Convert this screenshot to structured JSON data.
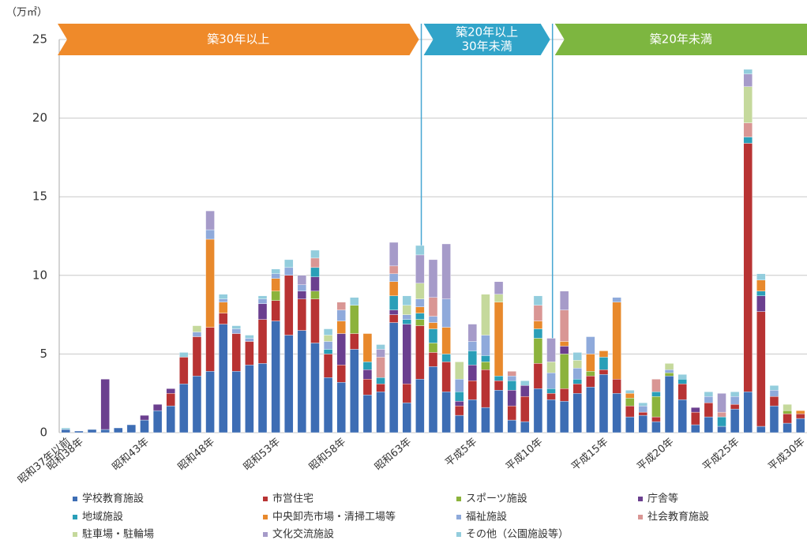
{
  "chart_data": {
    "type": "stacked_bar",
    "y_unit": "（万㎡）",
    "ylim": [
      0,
      25
    ],
    "yticks": [
      0,
      5,
      10,
      15,
      20,
      25
    ],
    "grid": true,
    "periods": [
      {
        "lines": [
          "築30年以上"
        ],
        "color": "#ef8a2a"
      },
      {
        "lines": [
          "築20年以上",
          "30年未満"
        ],
        "color": "#31a4c9"
      },
      {
        "lines": [
          "築20年未満"
        ],
        "color": "#7db640"
      }
    ],
    "divider_color": "#45a6d2",
    "categories": [
      "昭和37年以前",
      "昭和38年",
      null,
      null,
      null,
      null,
      "昭和43年",
      null,
      null,
      null,
      null,
      "昭和48年",
      null,
      null,
      null,
      null,
      "昭和53年",
      null,
      null,
      null,
      null,
      "昭和58年",
      null,
      null,
      null,
      null,
      "昭和63年",
      null,
      null,
      null,
      null,
      "平成5年",
      null,
      null,
      null,
      null,
      "平成10年",
      null,
      null,
      null,
      null,
      "平成15年",
      null,
      null,
      null,
      null,
      "平成20年",
      null,
      null,
      null,
      null,
      "平成25年",
      null,
      null,
      null,
      null,
      "平成30年"
    ],
    "series": [
      {
        "name": "学校教育施設",
        "color": "#3d6db4",
        "values": [
          0.2,
          0.1,
          0.2,
          0.2,
          0.3,
          0.5,
          0.8,
          1.4,
          1.7,
          3.1,
          3.6,
          3.9,
          6.9,
          3.9,
          4.3,
          4.4,
          7.1,
          6.2,
          6.5,
          5.7,
          3.5,
          3.2,
          5.3,
          2.4,
          2.6,
          7.0,
          1.9,
          3.4,
          4.2,
          2.6,
          1.1,
          2.1,
          1.6,
          2.7,
          0.8,
          0.7,
          2.8,
          2.1,
          2.0,
          2.5,
          2.9,
          3.7,
          2.5,
          1.0,
          1.1,
          0.7,
          3.6,
          2.1,
          0.5,
          1.0,
          0.4,
          1.5,
          2.6,
          0.4,
          1.7,
          0.6,
          0.9
        ]
      },
      {
        "name": "市営住宅",
        "color": "#b83333",
        "values": [
          0,
          0,
          0,
          0,
          0,
          0,
          0,
          0,
          0.8,
          1.7,
          2.5,
          2.8,
          0.7,
          2.4,
          1.5,
          2.8,
          1.3,
          3.8,
          2.0,
          2.8,
          1.5,
          1.1,
          1.0,
          1.0,
          0.5,
          0.5,
          1.2,
          3.4,
          0.9,
          1.9,
          0.6,
          1.2,
          2.4,
          0.6,
          0.9,
          1.6,
          1.6,
          0.4,
          0.8,
          0.6,
          0.7,
          0.3,
          0.9,
          0.7,
          0.2,
          0.3,
          0,
          1.0,
          0.8,
          0.9,
          0,
          0.3,
          15.8,
          7.3,
          0.6,
          0.6,
          0.3
        ]
      },
      {
        "name": "スポーツ施設",
        "color": "#8cb33c",
        "values": [
          0,
          0,
          0,
          0,
          0,
          0,
          0,
          0,
          0,
          0,
          0,
          0,
          0,
          0,
          0,
          0,
          0.6,
          0,
          0,
          0.5,
          0,
          0,
          1.8,
          0,
          0,
          0,
          0,
          0.4,
          0.6,
          0,
          0,
          0,
          0.5,
          0,
          0,
          0,
          1.6,
          0,
          2.2,
          0,
          0.3,
          0,
          0,
          0.5,
          0,
          1.3,
          0.2,
          0,
          0,
          0,
          0,
          0,
          0,
          0,
          0,
          0.2,
          0
        ]
      },
      {
        "name": "庁舎等",
        "color": "#6b3f8f",
        "values": [
          0,
          0,
          0,
          3.2,
          0,
          0,
          0.3,
          0.4,
          0.3,
          0,
          0,
          0,
          0,
          0,
          0,
          1.0,
          0,
          0,
          0.5,
          0.9,
          0,
          2.0,
          0,
          0.6,
          0,
          0.3,
          3.8,
          0,
          0,
          0,
          0.3,
          1.0,
          0,
          0,
          1.0,
          0.7,
          0,
          0,
          0.5,
          0,
          0,
          0,
          0,
          0,
          0,
          0,
          0,
          0,
          0.3,
          0,
          0,
          0,
          0,
          1.0,
          0,
          0,
          0
        ]
      },
      {
        "name": "地域施設",
        "color": "#2a9fb8",
        "values": [
          0,
          0,
          0,
          0,
          0,
          0,
          0,
          0,
          0,
          0,
          0,
          0,
          0,
          0,
          0,
          0,
          0,
          0,
          0,
          0.6,
          0.3,
          0,
          0,
          0.5,
          0.4,
          0.9,
          0.3,
          0.4,
          0.9,
          0.5,
          0.6,
          0.9,
          0.4,
          0.3,
          0.6,
          0,
          0.6,
          0.3,
          0,
          0.3,
          0,
          0.8,
          0,
          0,
          0,
          0.3,
          0,
          0.3,
          0,
          0,
          0.6,
          0,
          0.4,
          0.3,
          0,
          0,
          0
        ]
      },
      {
        "name": "中央卸売市場・清掃工場等",
        "color": "#e8892c",
        "values": [
          0,
          0,
          0,
          0,
          0,
          0,
          0,
          0,
          0,
          0,
          0,
          5.6,
          0.7,
          0,
          0,
          0,
          0.8,
          0,
          0,
          0,
          0,
          0.8,
          0,
          1.8,
          0,
          0.9,
          0,
          0.4,
          0.4,
          1.7,
          0,
          0,
          0,
          4.7,
          0,
          0,
          0.5,
          0,
          0.3,
          0,
          1.1,
          0.4,
          4.9,
          0.3,
          0,
          0,
          0,
          0,
          0,
          0,
          0,
          0,
          0,
          0.7,
          0,
          0,
          0.2
        ]
      },
      {
        "name": "福祉施設",
        "color": "#8faadb",
        "values": [
          0,
          0,
          0,
          0,
          0,
          0,
          0,
          0,
          0,
          0,
          0.3,
          0.6,
          0.2,
          0.3,
          0.2,
          0.3,
          0.3,
          0.5,
          0.4,
          0,
          0.5,
          0.7,
          0,
          0,
          0,
          0.5,
          0.3,
          0.5,
          0.4,
          1.8,
          0.8,
          0.6,
          1.3,
          0,
          0.3,
          0,
          0,
          1.0,
          0,
          0.7,
          1.1,
          0,
          0.3,
          0,
          0.4,
          0,
          0.2,
          0,
          0,
          0.4,
          0,
          0.5,
          0,
          0,
          0.4,
          0,
          0
        ]
      },
      {
        "name": "社会教育施設",
        "color": "#d99694",
        "values": [
          0,
          0,
          0,
          0,
          0,
          0,
          0,
          0,
          0,
          0,
          0,
          0,
          0,
          0,
          0,
          0,
          0,
          0,
          0,
          0.6,
          0,
          0.5,
          0,
          0,
          1.3,
          0.5,
          0,
          0,
          1.2,
          0,
          0,
          0,
          0,
          0,
          0.3,
          0,
          1.0,
          0,
          2.0,
          0,
          0,
          0,
          0,
          0,
          0,
          0.8,
          0,
          0,
          0,
          0,
          0.3,
          0,
          0.9,
          0,
          0,
          0,
          0
        ]
      },
      {
        "name": "駐車場・駐輪場",
        "color": "#c5d99c",
        "values": [
          0,
          0,
          0,
          0,
          0,
          0,
          0,
          0,
          0,
          0,
          0.4,
          0,
          0,
          0,
          0,
          0,
          0,
          0,
          0,
          0,
          0.4,
          0,
          0,
          0,
          0,
          0,
          0.6,
          1.0,
          0,
          0,
          1.1,
          0,
          2.6,
          0.5,
          0,
          0,
          0,
          0.7,
          0,
          0.5,
          0,
          0,
          0,
          0,
          0,
          0,
          0.4,
          0,
          0,
          0,
          0,
          0,
          2.3,
          0,
          0,
          0.4,
          0
        ]
      },
      {
        "name": "文化交流施設",
        "color": "#a69bc9",
        "values": [
          0,
          0,
          0,
          0,
          0,
          0,
          0,
          0,
          0,
          0,
          0,
          1.2,
          0,
          0,
          0,
          0,
          0,
          0,
          0.6,
          0,
          0,
          0,
          0,
          0,
          0.5,
          1.5,
          0,
          1.8,
          2.4,
          3.5,
          0,
          1.1,
          0,
          0.8,
          0,
          0,
          0,
          1.5,
          1.2,
          0,
          0,
          0,
          0,
          0,
          0,
          0,
          0,
          0,
          0,
          0,
          1.2,
          0,
          0.8,
          0,
          0,
          0,
          0
        ]
      },
      {
        "name": "その他（公園施設等）",
        "color": "#93cddd",
        "values": [
          0.1,
          0,
          0,
          0,
          0,
          0,
          0,
          0,
          0,
          0.3,
          0,
          0,
          0.3,
          0.2,
          0.2,
          0.2,
          0.3,
          0.5,
          0,
          0.5,
          0.4,
          0,
          0.5,
          0,
          0.3,
          0,
          0.6,
          0.6,
          0,
          0,
          0,
          0,
          0,
          0,
          0,
          0.3,
          0.6,
          0,
          0,
          0.5,
          0,
          0,
          0,
          0.2,
          0.2,
          0,
          0,
          0.3,
          0,
          0.3,
          0,
          0.3,
          0.3,
          0.4,
          0.3,
          0,
          0
        ]
      }
    ]
  }
}
